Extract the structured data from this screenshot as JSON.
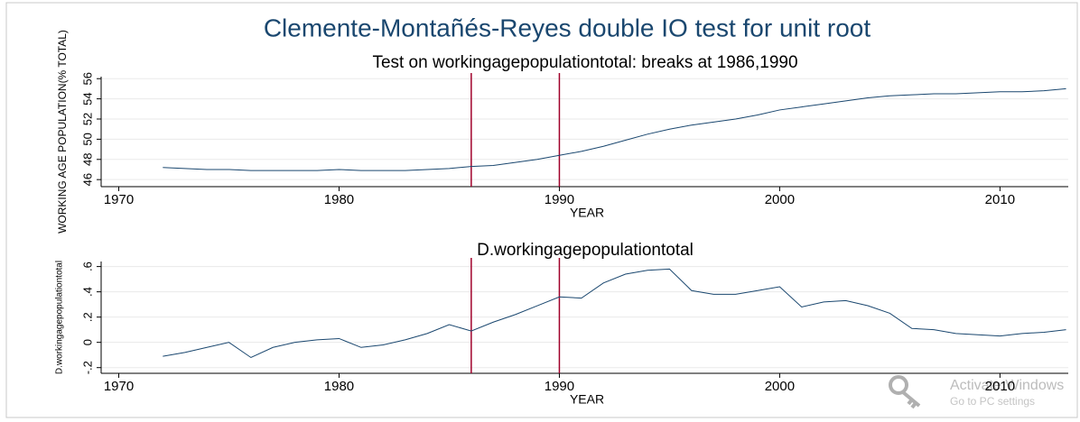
{
  "title": "Clemente-Montañés-Reyes double IO test for unit root",
  "watermark": {
    "line1": "Activate Windows",
    "line2": "Go to PC settings"
  },
  "chart_data": [
    {
      "type": "line",
      "title": "Test on workingagepopulationtotal: breaks at 1986,1990",
      "x_label": "YEAR",
      "y_label": "WORKING AGE POPULATION(% TOTAL)",
      "x": [
        1972,
        1973,
        1974,
        1975,
        1976,
        1977,
        1978,
        1979,
        1980,
        1981,
        1982,
        1983,
        1984,
        1985,
        1986,
        1987,
        1988,
        1989,
        1990,
        1991,
        1992,
        1993,
        1994,
        1995,
        1996,
        1997,
        1998,
        1999,
        2000,
        2001,
        2002,
        2003,
        2004,
        2005,
        2006,
        2007,
        2008,
        2009,
        2010,
        2011,
        2012,
        2013
      ],
      "values": [
        47.2,
        47.1,
        47.0,
        47.0,
        46.9,
        46.9,
        46.9,
        46.9,
        47.0,
        46.9,
        46.9,
        46.9,
        47.0,
        47.1,
        47.3,
        47.4,
        47.7,
        48.0,
        48.4,
        48.8,
        49.3,
        49.9,
        50.5,
        51.0,
        51.4,
        51.7,
        52.0,
        52.4,
        52.9,
        53.2,
        53.5,
        53.8,
        54.1,
        54.3,
        54.4,
        54.5,
        54.5,
        54.6,
        54.7,
        54.7,
        54.8,
        55.0
      ],
      "color": "#1a476f",
      "breaks": [
        1986,
        1990
      ],
      "break_color": "#a0002a",
      "xlim": [
        1969.2,
        2013.1
      ],
      "xticks": [
        1970,
        1980,
        1990,
        2000,
        2010
      ],
      "ylim": [
        45.3,
        56.2
      ],
      "yticks": [
        46,
        48,
        50,
        52,
        54,
        56
      ],
      "grid": true
    },
    {
      "type": "line",
      "title": "D.workingagepopulationtotal",
      "x_label": "YEAR",
      "y_label": "D.workingagepopulationtotal",
      "x": [
        1972,
        1973,
        1974,
        1975,
        1976,
        1977,
        1978,
        1979,
        1980,
        1981,
        1982,
        1983,
        1984,
        1985,
        1986,
        1987,
        1988,
        1989,
        1990,
        1991,
        1992,
        1993,
        1994,
        1995,
        1996,
        1997,
        1998,
        1999,
        2000,
        2001,
        2002,
        2003,
        2004,
        2005,
        2006,
        2007,
        2008,
        2009,
        2010,
        2011,
        2012,
        2013
      ],
      "values": [
        -0.11,
        -0.08,
        -0.04,
        0.0,
        -0.12,
        -0.04,
        0.0,
        0.02,
        0.03,
        -0.04,
        -0.02,
        0.02,
        0.07,
        0.14,
        0.09,
        0.16,
        0.22,
        0.29,
        0.36,
        0.35,
        0.47,
        0.54,
        0.57,
        0.58,
        0.41,
        0.38,
        0.38,
        0.41,
        0.44,
        0.28,
        0.32,
        0.33,
        0.29,
        0.23,
        0.11,
        0.1,
        0.07,
        0.06,
        0.05,
        0.07,
        0.08,
        0.1
      ],
      "color": "#1a476f",
      "breaks": [
        1986,
        1990
      ],
      "break_color": "#a0002a",
      "xlim": [
        1969.2,
        2013.1
      ],
      "xticks": [
        1970,
        1980,
        1990,
        2000,
        2010
      ],
      "ylim": [
        -0.245,
        0.64
      ],
      "yticks": [
        {
          "value": -0.2,
          "label": "-.2"
        },
        0,
        {
          "value": 0.2,
          "label": ".2"
        },
        {
          "value": 0.4,
          "label": ".4"
        },
        {
          "value": 0.6,
          "label": ".6"
        }
      ],
      "grid": true
    }
  ]
}
